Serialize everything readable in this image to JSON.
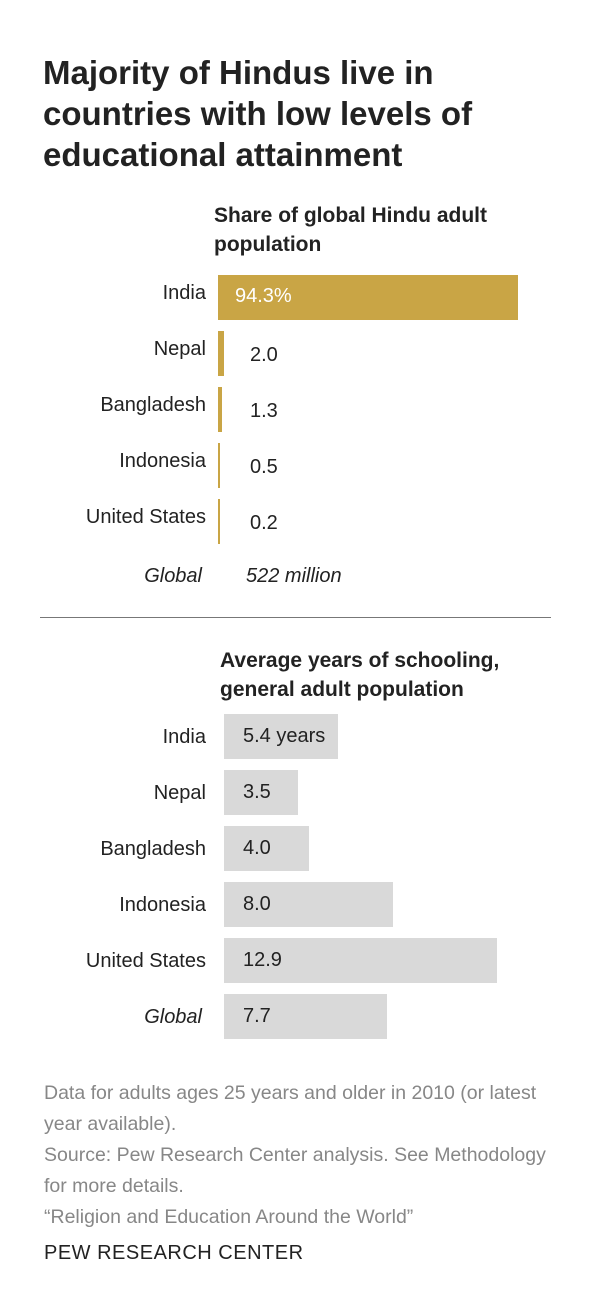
{
  "title": "Majority of Hindus live in countries with low levels of educational attainment",
  "colors": {
    "gold": "#c9a545",
    "gray": "#d9d9d9",
    "divider": "#777777",
    "note": "#878787"
  },
  "chart_data": [
    {
      "type": "bar",
      "orientation": "horizontal",
      "title": "Share of global Hindu adult population",
      "categories": [
        "India",
        "Nepal",
        "Bangladesh",
        "Indonesia",
        "United States"
      ],
      "values": [
        94.3,
        2.0,
        1.3,
        0.5,
        0.2
      ],
      "value_labels": [
        "94.3%",
        "2.0",
        "1.3",
        "0.5",
        "0.2"
      ],
      "total_label": "Global",
      "total_value_label": "522 million",
      "xlim": [
        0,
        94.3
      ]
    },
    {
      "type": "bar",
      "orientation": "horizontal",
      "title": "Average years of schooling, general adult population",
      "categories": [
        "India",
        "Nepal",
        "Bangladesh",
        "Indonesia",
        "United States",
        "Global"
      ],
      "values": [
        5.4,
        3.5,
        4.0,
        8.0,
        12.9,
        7.7
      ],
      "value_labels": [
        "5.4 years",
        "3.5",
        "4.0",
        "8.0",
        "12.9",
        "7.7"
      ],
      "xlim": [
        0,
        12.9
      ]
    }
  ],
  "notes": {
    "line1": "Data for adults ages 25 years and older in 2010 (or latest year available).",
    "line2": "Source: Pew Research Center analysis. See Methodology for more details.",
    "line3": "“Religion and Education Around the World”"
  },
  "brand": "PEW RESEARCH CENTER"
}
